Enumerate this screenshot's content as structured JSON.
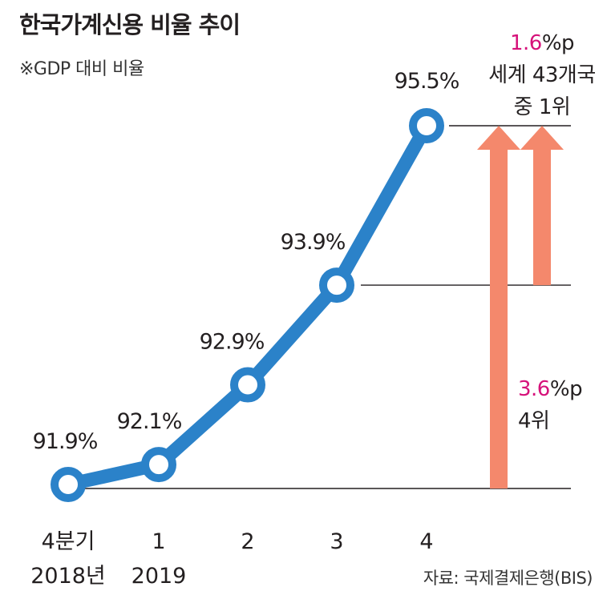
{
  "chart_data": {
    "type": "line",
    "title": "한국가계신용 비율 추이",
    "subtitle": "※GDP 대비 비율",
    "categories": [
      {
        "top": "4분기",
        "bottom": "2018년"
      },
      {
        "top": "1",
        "bottom": "2019"
      },
      {
        "top": "2",
        "bottom": ""
      },
      {
        "top": "3",
        "bottom": ""
      },
      {
        "top": "4",
        "bottom": ""
      }
    ],
    "values": [
      91.9,
      92.1,
      92.9,
      93.9,
      95.5
    ],
    "labels": [
      "91.9%",
      "92.1%",
      "92.9%",
      "93.9%",
      "95.5%"
    ],
    "ylim": [
      91.9,
      95.5
    ],
    "grid": false,
    "annotations": {
      "small": {
        "value": "1.6",
        "unit": "%p",
        "line1": "세계 43개국",
        "line2": "중 1위"
      },
      "large": {
        "value": "3.6",
        "unit": "%p",
        "line1": "4위"
      }
    },
    "source": "자료: 국제결제은행(BIS)"
  },
  "colors": {
    "line": "#2b82c9",
    "marker_fill": "#ffffff",
    "arrow": "#f4886c",
    "accent": "#d6127a",
    "reference_line": "#231f20"
  }
}
